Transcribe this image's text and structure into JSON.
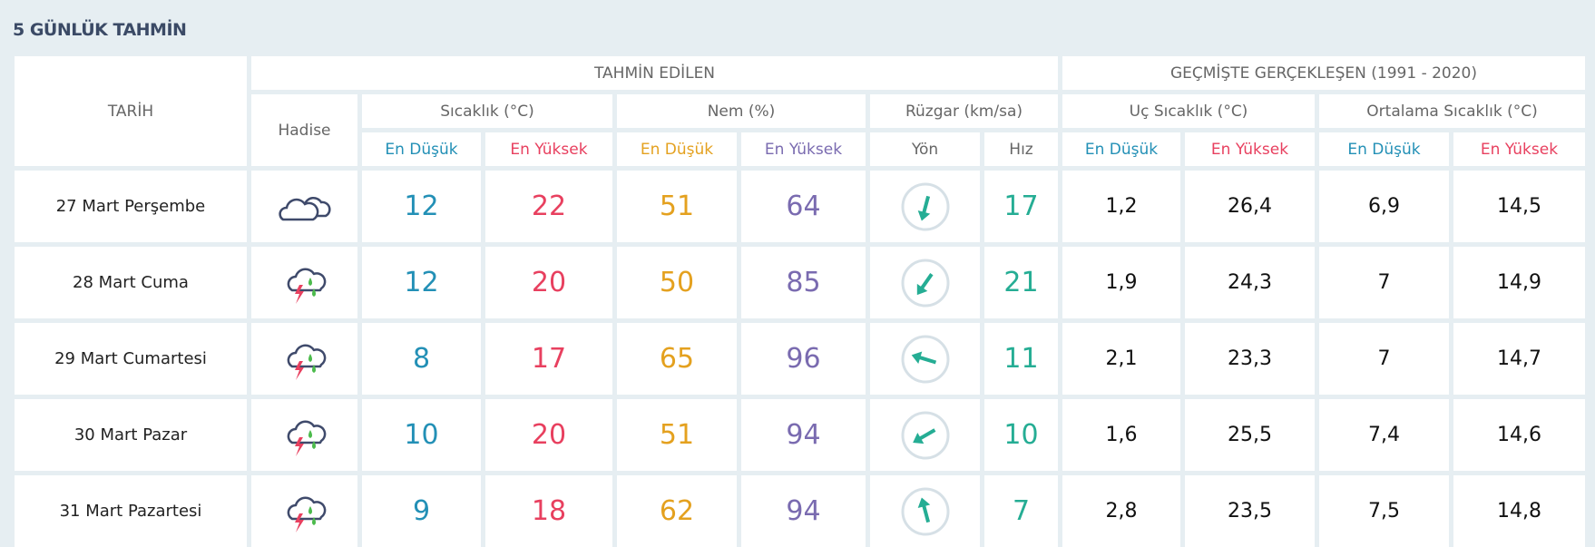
{
  "title": "5 GÜNLÜK TAHMİN",
  "headers": {
    "date": "TARİH",
    "forecast": "TAHMİN EDİLEN",
    "past": "GEÇMİŞTE GERÇEKLEŞEN (1991 - 2020)",
    "event": "Hadise",
    "temp": "Sıcaklık (°C)",
    "humidity": "Nem (%)",
    "wind": "Rüzgar (km/sa)",
    "extreme": "Uç Sıcaklık (°C)",
    "average": "Ortalama Sıcaklık (°C)",
    "min": "En Düşük",
    "max": "En Yüksek",
    "dir": "Yön",
    "speed": "Hız"
  },
  "colors": {
    "min": "#2390b6",
    "max": "#e8405f",
    "hum_min": "#e4a11f",
    "hum_max": "#7a6bb0",
    "wind": "#25ad94"
  },
  "rows": [
    {
      "date": "27 Mart Perşembe",
      "icon": "cloudy-icon",
      "tmin": "12",
      "tmax": "22",
      "hmin": "51",
      "hmax": "64",
      "wind_deg": 195,
      "speed": "17",
      "xmin": "1,2",
      "xmax": "26,4",
      "amin": "6,9",
      "amax": "14,5"
    },
    {
      "date": "28 Mart Cuma",
      "icon": "thunderstorm-rain-icon",
      "tmin": "12",
      "tmax": "20",
      "hmin": "50",
      "hmax": "85",
      "wind_deg": 215,
      "speed": "21",
      "xmin": "1,9",
      "xmax": "24,3",
      "amin": "7",
      "amax": "14,9"
    },
    {
      "date": "29 Mart Cumartesi",
      "icon": "thunderstorm-rain-icon",
      "tmin": "8",
      "tmax": "17",
      "hmin": "65",
      "hmax": "96",
      "wind_deg": 287,
      "speed": "11",
      "xmin": "2,1",
      "xmax": "23,3",
      "amin": "7",
      "amax": "14,7"
    },
    {
      "date": "30 Mart Pazar",
      "icon": "thunderstorm-rain-icon",
      "tmin": "10",
      "tmax": "20",
      "hmin": "51",
      "hmax": "94",
      "wind_deg": 240,
      "speed": "10",
      "xmin": "1,6",
      "xmax": "25,5",
      "amin": "7,4",
      "amax": "14,6"
    },
    {
      "date": "31 Mart Pazartesi",
      "icon": "thunderstorm-rain-icon",
      "tmin": "9",
      "tmax": "18",
      "hmin": "62",
      "hmax": "94",
      "wind_deg": 345,
      "speed": "7",
      "xmin": "2,8",
      "xmax": "23,5",
      "amin": "7,5",
      "amax": "14,8"
    }
  ]
}
